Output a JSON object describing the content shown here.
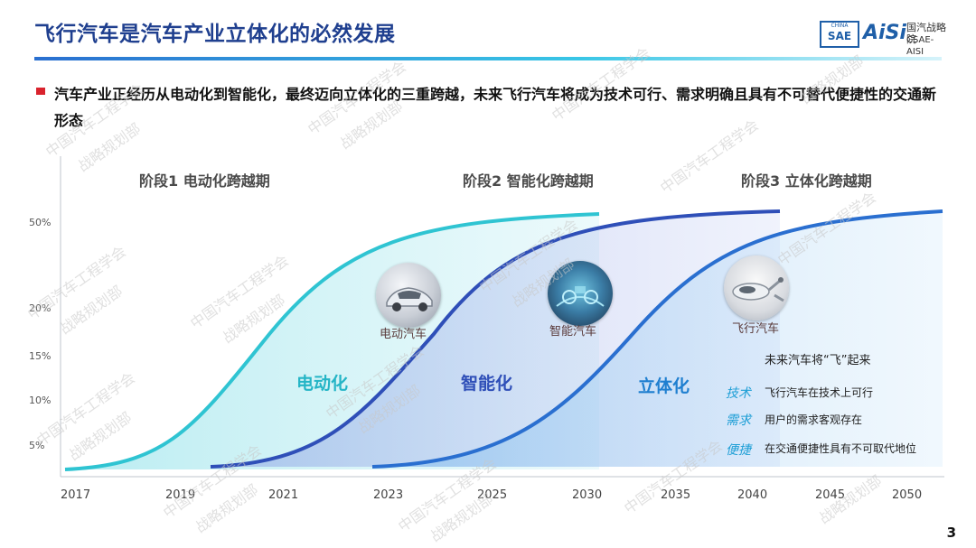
{
  "header": {
    "title": "飞行汽车是汽车产业立体化的必然发展",
    "logo": {
      "china": "CHINA",
      "sae": "SAE",
      "aisi": "AiSi",
      "cn": "国汽战略院",
      "en": "CSAE-AISI"
    }
  },
  "subtitle": "汽车产业正经历从电动化到智能化，最终迈向立体化的三重跨越，未来飞行汽车将成为技术可行、需求明确且具有不可替代便捷性的交通新形态",
  "chart_data": {
    "type": "area",
    "x": [
      "2017",
      "2019",
      "2021",
      "2023",
      "2025",
      "2030",
      "2035",
      "2040",
      "2045",
      "2050"
    ],
    "y_ticks": [
      "5%",
      "10%",
      "15%",
      "20%",
      "50%"
    ],
    "stages": [
      {
        "label": "阶段1 电动化跨越期",
        "curve_label": "电动化",
        "icon_label": "电动汽车"
      },
      {
        "label": "阶段2 智能化跨越期",
        "curve_label": "智能化",
        "icon_label": "智能汽车"
      },
      {
        "label": "阶段3 立体化跨越期",
        "curve_label": "立体化",
        "icon_label": "飞行汽车"
      }
    ],
    "colors": {
      "stage1": "#2fc4d2",
      "stage2": "#2f4fb8",
      "stage3": "#2a6fd0"
    }
  },
  "annotation": {
    "heading": "未来汽车将“飞”起来",
    "items": [
      {
        "key": "技术",
        "text": "飞行汽车在技术上可行"
      },
      {
        "key": "需求",
        "text": "用户的需求客观存在"
      },
      {
        "key": "便捷",
        "text": "在交通便捷性具有不可取代地位"
      }
    ]
  },
  "watermarks": [
    "中国汽车工程学会",
    "战略规划部"
  ],
  "page_number": "3"
}
